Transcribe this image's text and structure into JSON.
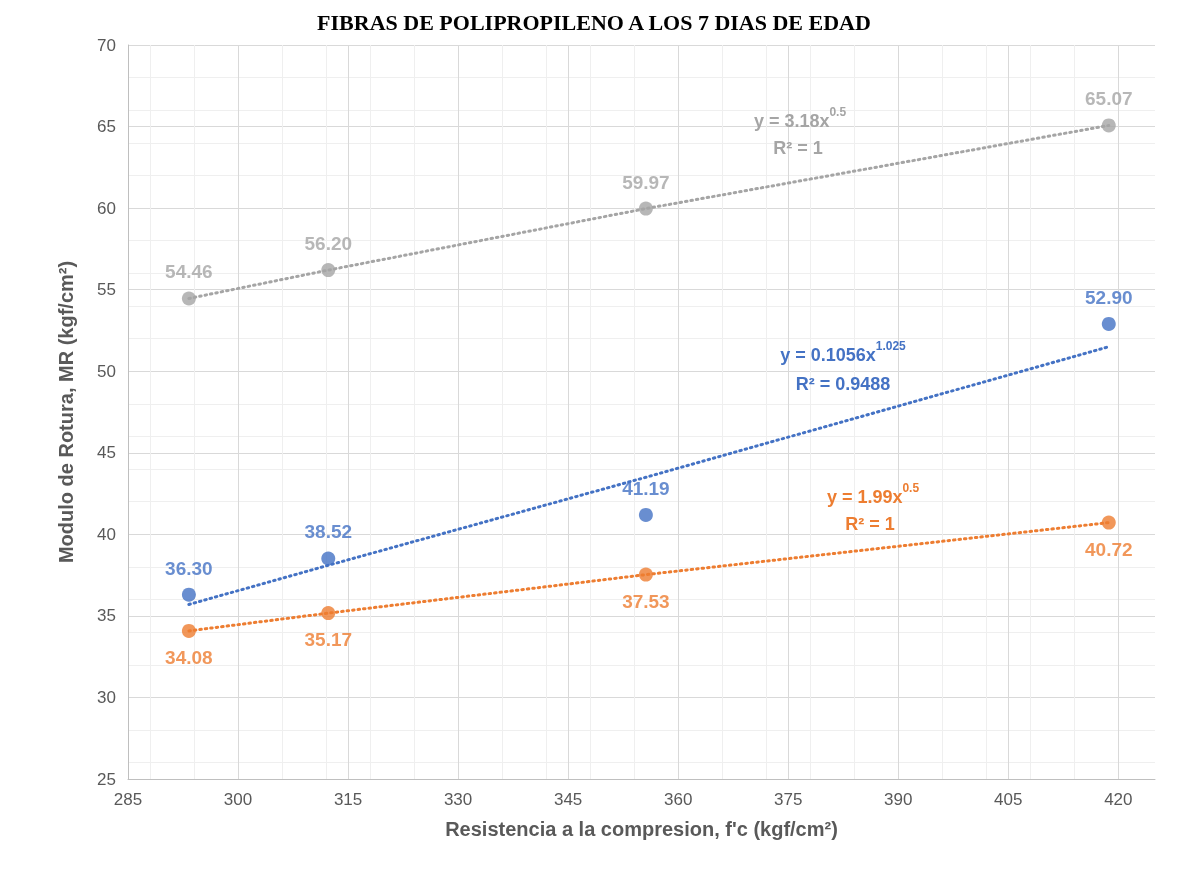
{
  "chart_data": {
    "type": "scatter",
    "title": "FIBRAS DE POLIPROPILENO A LOS 7 DIAS DE EDAD",
    "xlabel": "Resistencia a la compresion, f'c (kgf/cm²)",
    "ylabel": "Modulo de Rotura, MR (kgf/cm²)",
    "xlim": [
      285,
      425
    ],
    "xticks": [
      285,
      300,
      315,
      330,
      345,
      360,
      375,
      390,
      405,
      420
    ],
    "ylim": [
      25,
      70
    ],
    "yticks": [
      25,
      30,
      35,
      40,
      45,
      50,
      55,
      60,
      65,
      70
    ],
    "grid": true,
    "marker": "circle",
    "series": [
      {
        "color": "#a5a5a5",
        "x": [
          293.3,
          312.3,
          355.6,
          418.7
        ],
        "values": [
          54.46,
          56.2,
          59.97,
          65.07
        ],
        "value_labels": [
          "54.46",
          "56.20",
          "59.97",
          "65.07"
        ]
      },
      {
        "color": "#4472c4",
        "x": [
          293.3,
          312.3,
          355.6,
          418.7
        ],
        "values": [
          36.3,
          38.52,
          41.19,
          52.9
        ],
        "value_labels": [
          "36.30",
          "38.52",
          "41.19",
          "52.90"
        ]
      },
      {
        "color": "#ed7d31",
        "x": [
          293.3,
          312.3,
          355.6,
          418.7
        ],
        "values": [
          34.08,
          35.17,
          37.53,
          40.72
        ],
        "value_labels": [
          "34.08",
          "35.17",
          "37.53",
          "40.72"
        ]
      },
      {
        "type": "line",
        "marker": "none",
        "line_style": "dotted",
        "color": "#a5a5a5",
        "x": [
          293.3,
          312.3,
          355.6,
          418.7
        ],
        "values": [
          54.46,
          56.2,
          59.97,
          65.07
        ]
      },
      {
        "type": "line",
        "marker": "none",
        "line_style": "dotted",
        "color": "#4472c4",
        "x": [
          293.3,
          312.3,
          355.6,
          418.7
        ],
        "values": [
          35.7,
          38.1,
          43.5,
          51.5
        ]
      },
      {
        "type": "line",
        "marker": "none",
        "line_style": "dotted",
        "color": "#ed7d31",
        "x": [
          293.3,
          312.3,
          355.6,
          418.7
        ],
        "values": [
          34.08,
          35.17,
          37.53,
          40.72
        ]
      }
    ],
    "annotations": [
      "y = 3.18x$^{0.5}$",
      "R² = 1",
      "y = 0.1056x$^{1.025}$",
      "R² = 0.9488",
      "y = 1.99x$^{0.5}$",
      "R² = 1"
    ]
  }
}
